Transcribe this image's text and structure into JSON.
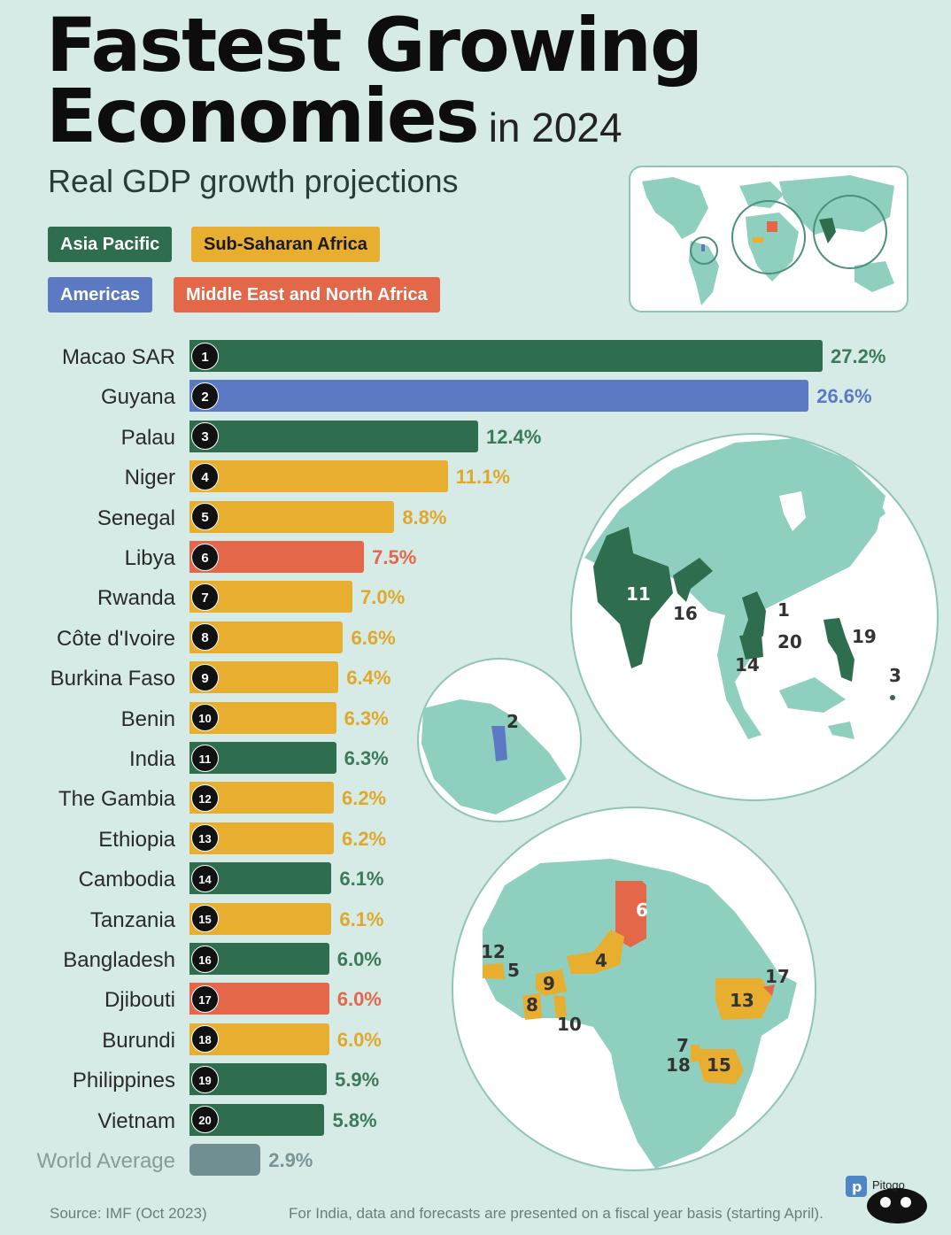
{
  "title": {
    "line1": "Fastest Growing",
    "line2": "Economies",
    "suffix": "in 2024"
  },
  "subtitle": "Real GDP growth projections",
  "legend": [
    {
      "label": "Asia Pacific",
      "color": "#2e6e4f",
      "text_color": "#ffffff"
    },
    {
      "label": "Sub-Saharan Africa",
      "color": "#e8ae2f",
      "text_color": "#1a1a1a"
    },
    {
      "label": "Americas",
      "color": "#5c79c4",
      "text_color": "#ffffff"
    },
    {
      "label": "Middle East and North Africa",
      "color": "#e4674a",
      "text_color": "#ffffff"
    }
  ],
  "chart_data": {
    "type": "bar",
    "orientation": "horizontal",
    "value_unit": "%",
    "categories": [
      "Macao SAR",
      "Guyana",
      "Palau",
      "Niger",
      "Senegal",
      "Libya",
      "Rwanda",
      "Côte d'Ivoire",
      "Burkina Faso",
      "Benin",
      "India",
      "The Gambia",
      "Ethiopia",
      "Cambodia",
      "Tanzania",
      "Bangladesh",
      "Djibouti",
      "Burundi",
      "Philippines",
      "Vietnam",
      "World Average"
    ],
    "ranks": [
      "1",
      "2",
      "3",
      "4",
      "5",
      "6",
      "7",
      "8",
      "9",
      "10",
      "11",
      "12",
      "13",
      "14",
      "15",
      "16",
      "17",
      "18",
      "19",
      "20",
      ""
    ],
    "values": [
      27.2,
      26.6,
      12.4,
      11.1,
      8.8,
      7.5,
      7.0,
      6.6,
      6.4,
      6.3,
      6.3,
      6.2,
      6.2,
      6.1,
      6.1,
      6.0,
      6.0,
      6.0,
      5.9,
      5.8,
      2.9
    ],
    "value_labels": [
      "27.2%",
      "26.6%",
      "12.4%",
      "11.1%",
      "8.8%",
      "7.5%",
      "7.0%",
      "6.6%",
      "6.4%",
      "6.3%",
      "6.3%",
      "6.2%",
      "6.2%",
      "6.1%",
      "6.1%",
      "6.0%",
      "6.0%",
      "6.0%",
      "5.9%",
      "5.8%",
      "2.9%"
    ],
    "regions": [
      "Asia Pacific",
      "Americas",
      "Asia Pacific",
      "Sub-Saharan Africa",
      "Sub-Saharan Africa",
      "Middle East and North Africa",
      "Sub-Saharan Africa",
      "Sub-Saharan Africa",
      "Sub-Saharan Africa",
      "Sub-Saharan Africa",
      "Asia Pacific",
      "Sub-Saharan Africa",
      "Sub-Saharan Africa",
      "Asia Pacific",
      "Sub-Saharan Africa",
      "Asia Pacific",
      "Middle East and North Africa",
      "Sub-Saharan Africa",
      "Asia Pacific",
      "Asia Pacific",
      "World"
    ],
    "colors": {
      "Asia Pacific": "#2e6e4f",
      "Sub-Saharan Africa": "#e8ae2f",
      "Americas": "#5c79c4",
      "Middle East and North Africa": "#e4674a",
      "World": "#6f8f92"
    },
    "value_label_colors": {
      "Asia Pacific": "#3b7a5a",
      "Sub-Saharan Africa": "#e0a82a",
      "Americas": "#5c79c4",
      "Middle East and North Africa": "#e4674a",
      "World": "#7a9496"
    },
    "xlim": [
      0,
      27.2
    ]
  },
  "map_labels": {
    "asia": [
      "11",
      "16",
      "1",
      "20",
      "14",
      "19",
      "3"
    ],
    "americas": [
      "2"
    ],
    "africa": [
      "6",
      "12",
      "5",
      "4",
      "9",
      "8",
      "10",
      "17",
      "13",
      "7",
      "18",
      "15"
    ]
  },
  "source": "Source: IMF (Oct 2023)",
  "footnote": "For India, data and forecasts are presented on a fiscal year basis (starting April).",
  "logo_text": "Pitogo"
}
